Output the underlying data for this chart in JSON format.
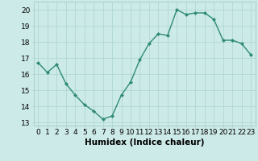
{
  "x": [
    0,
    1,
    2,
    3,
    4,
    5,
    6,
    7,
    8,
    9,
    10,
    11,
    12,
    13,
    14,
    15,
    16,
    17,
    18,
    19,
    20,
    21,
    22,
    23
  ],
  "y": [
    16.7,
    16.1,
    16.6,
    15.4,
    14.7,
    14.1,
    13.7,
    13.2,
    13.4,
    14.7,
    15.5,
    16.9,
    17.9,
    18.5,
    18.4,
    20.0,
    19.7,
    19.8,
    19.8,
    19.4,
    18.1,
    18.1,
    17.9,
    17.2
  ],
  "line_color": "#2e8b74",
  "marker": "D",
  "markersize": 2.0,
  "linewidth": 1.0,
  "bg_color": "#cceae8",
  "grid_color": "#aad4d0",
  "xlabel": "Humidex (Indice chaleur)",
  "xlim": [
    -0.5,
    23.5
  ],
  "ylim": [
    12.8,
    20.5
  ],
  "yticks": [
    13,
    14,
    15,
    16,
    17,
    18,
    19,
    20
  ],
  "xticks": [
    0,
    1,
    2,
    3,
    4,
    5,
    6,
    7,
    8,
    9,
    10,
    11,
    12,
    13,
    14,
    15,
    16,
    17,
    18,
    19,
    20,
    21,
    22,
    23
  ],
  "xlabel_fontsize": 7.5,
  "tick_fontsize": 6.5
}
